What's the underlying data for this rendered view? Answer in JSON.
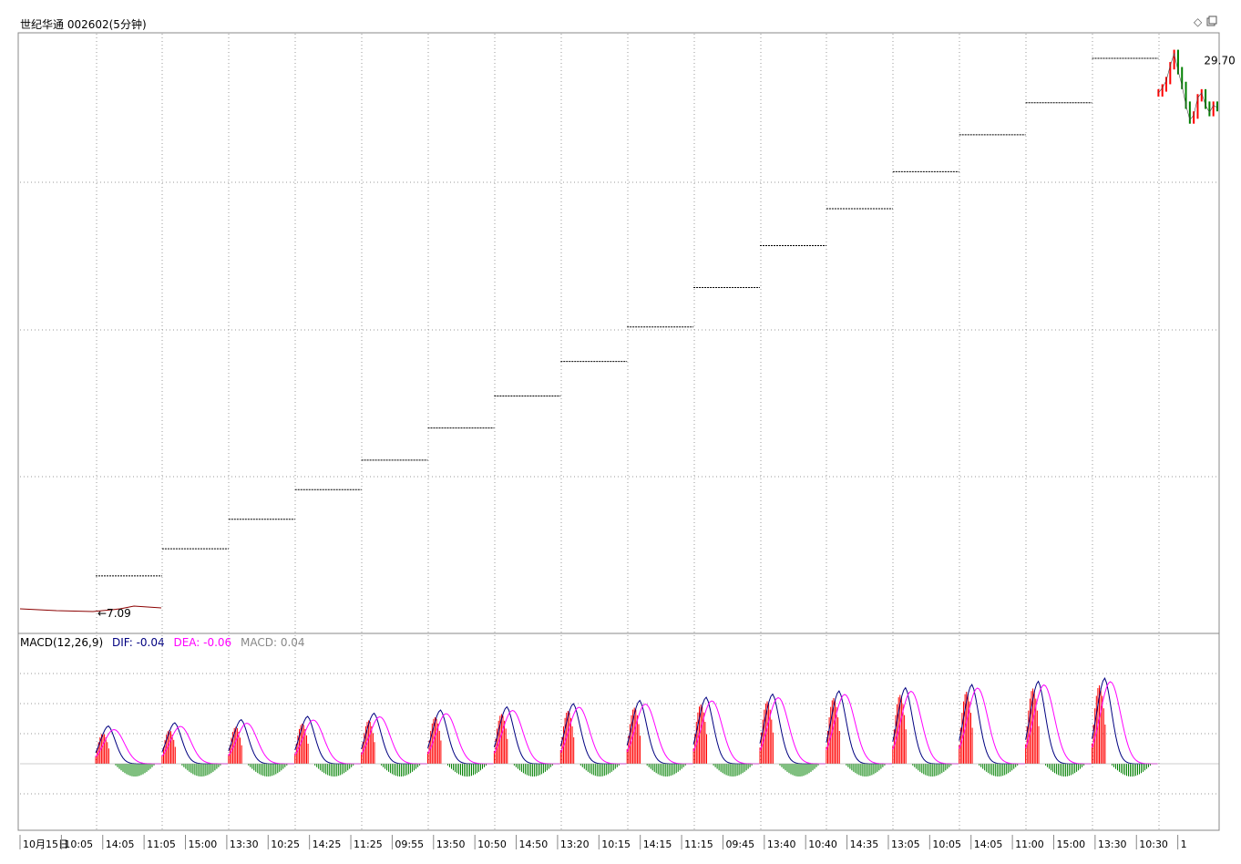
{
  "header": {
    "title": "世纪华通 002602(5分钟)"
  },
  "controls": {
    "diamond_icon": "diamond-icon",
    "restore_icon": "window-restore-icon"
  },
  "colors": {
    "up": "#ff0000",
    "down": "#008000",
    "dif": "#000080",
    "dea": "#ff00ff",
    "macd": "#888888",
    "grid": "#999999",
    "level": "#000000"
  },
  "macd": {
    "name": "MACD(12,26,9)",
    "dif": "DIF: -0.04",
    "dea": "DEA: -0.06",
    "macd": "MACD: 0.04"
  },
  "chart_data": [
    {
      "type": "line",
      "title": "",
      "price_labels": {
        "high": "29.70",
        "low": "7.09"
      },
      "x_ticks": [
        "10月15日",
        "10:05",
        "14:05",
        "11:05",
        "15:00",
        "13:30",
        "10:25",
        "14:25",
        "11:25",
        "09:55",
        "13:50",
        "10:50",
        "14:50",
        "13:20",
        "10:15",
        "14:15",
        "11:15",
        "09:45",
        "13:40",
        "10:40",
        "14:35",
        "13:05",
        "10:05",
        "14:05",
        "11:00",
        "15:00",
        "13:30",
        "10:30",
        "1"
      ],
      "steps": [
        7.09,
        8.5,
        9.6,
        10.8,
        12.0,
        13.2,
        14.5,
        15.8,
        17.2,
        18.6,
        20.2,
        21.9,
        23.4,
        24.9,
        26.4,
        27.7,
        29.5
      ],
      "last_segment": [
        28.1,
        28.3,
        28.6,
        29.2,
        29.7,
        29.0,
        28.4,
        27.6,
        27.0,
        27.2,
        27.9,
        28.1,
        27.6,
        27.3,
        27.6,
        27.5
      ],
      "ylim": [
        6.5,
        30.5
      ],
      "grid": true
    },
    {
      "type": "bar",
      "title": "MACD(12,26,9)",
      "series": [
        {
          "name": "DIF",
          "values": [
            -0.04
          ]
        },
        {
          "name": "DEA",
          "values": [
            -0.06
          ]
        },
        {
          "name": "MACD",
          "values": [
            0.04
          ]
        }
      ],
      "grid": true
    }
  ]
}
